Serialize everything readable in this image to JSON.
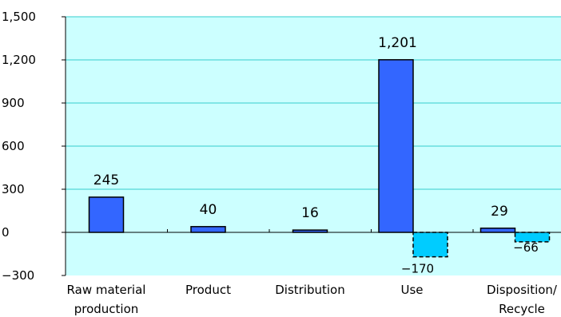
{
  "chart_data": {
    "type": "bar",
    "title": "",
    "xlabel": "",
    "ylabel": "",
    "ylim": [
      -300,
      1500
    ],
    "yticks": [
      "1,500",
      "1,200",
      "900",
      "600",
      "300",
      "0",
      "−300"
    ],
    "ytick_values": [
      1500,
      1200,
      900,
      600,
      300,
      0,
      -300
    ],
    "grid": true,
    "legend": "none",
    "categories": [
      [
        "Raw material",
        "production"
      ],
      [
        "Product"
      ],
      [
        "Distribution"
      ],
      [
        "Use"
      ],
      [
        "Disposition/",
        "Recycle"
      ]
    ],
    "series": [
      {
        "values": [
          245,
          40,
          16,
          1201,
          29
        ],
        "labels": [
          "245",
          "40",
          "16",
          "1,201",
          "29"
        ],
        "color": "#3366ff",
        "style": "solid"
      },
      {
        "values": [
          null,
          null,
          null,
          -170,
          -66
        ],
        "labels": [
          "",
          "",
          "",
          "−170",
          "−66"
        ],
        "color": "#00ccff",
        "style": "dashed"
      }
    ],
    "colors": {
      "plot_background": "#ccffff",
      "gridline": "#33cccc",
      "axis": "#000000"
    }
  }
}
